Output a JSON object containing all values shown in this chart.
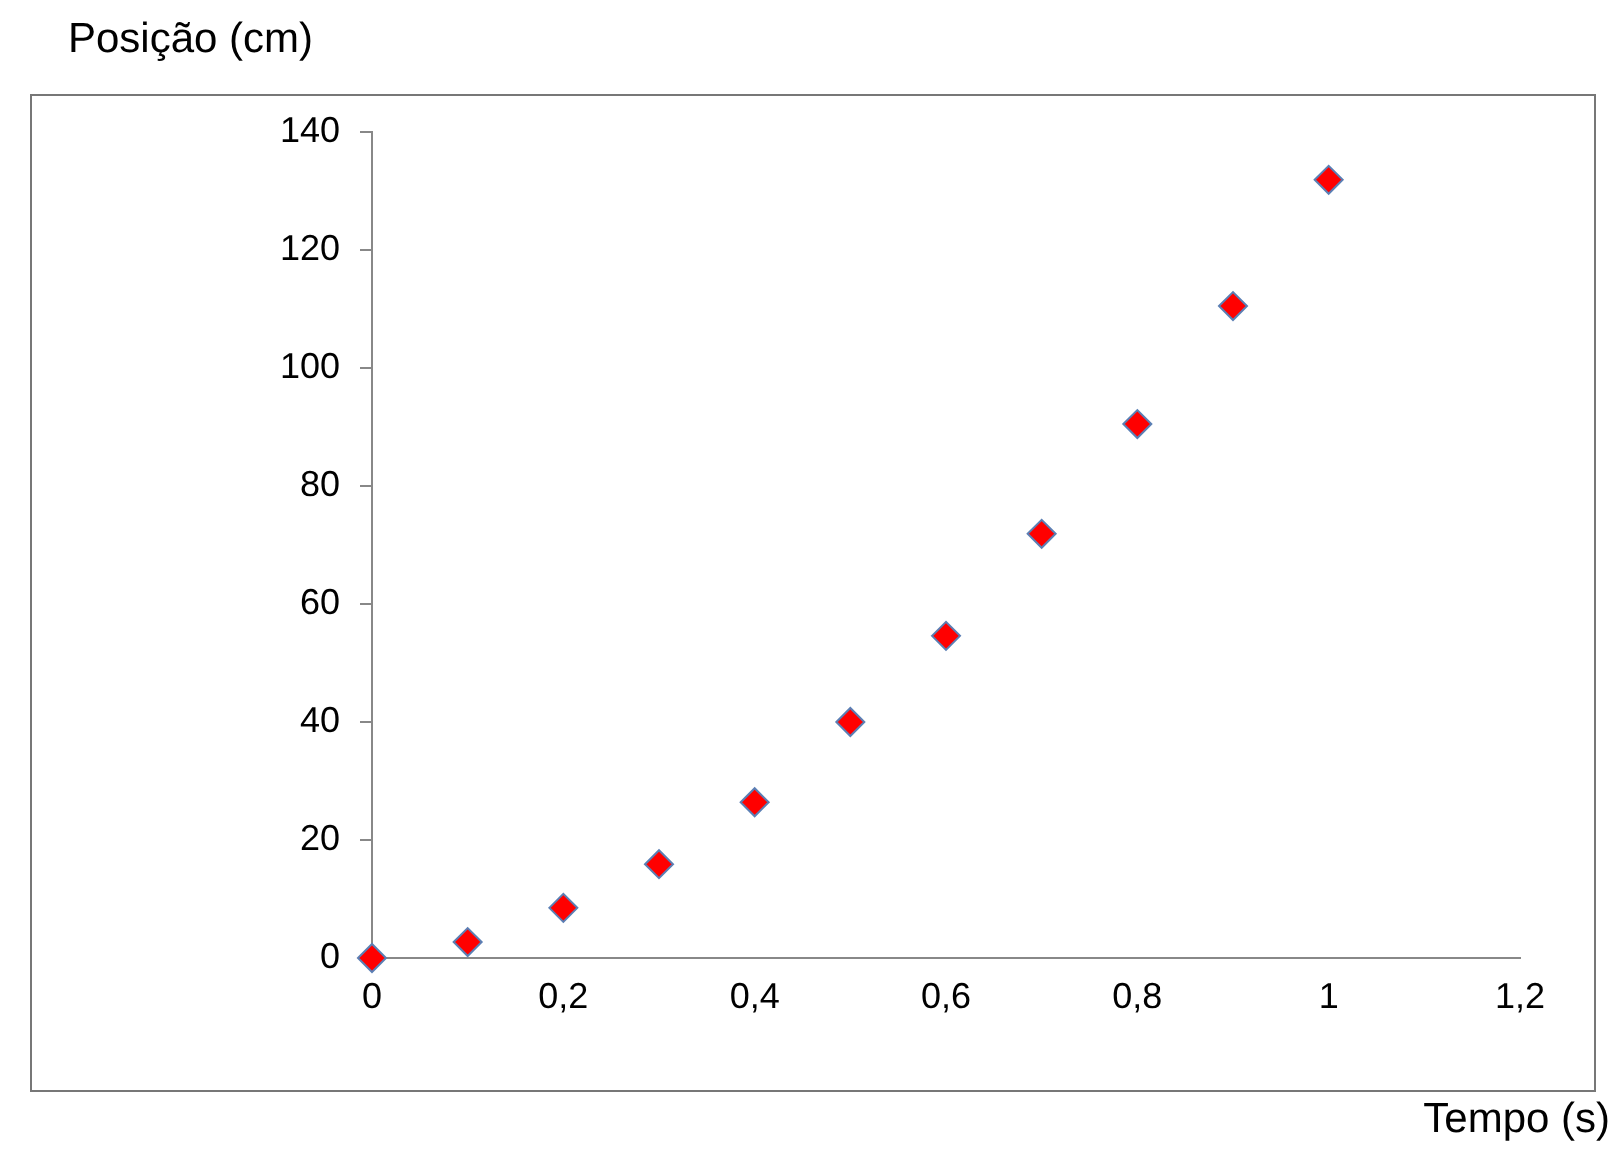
{
  "chart_data": {
    "type": "scatter",
    "xlabel": "Tempo (s)",
    "ylabel": "Posição (cm)",
    "x": [
      0,
      0.1,
      0.2,
      0.3,
      0.4,
      0.5,
      0.6,
      0.7,
      0.8,
      0.9,
      1
    ],
    "values": [
      0,
      2.7,
      8.5,
      15.9,
      26.4,
      40,
      54.6,
      71.9,
      90.5,
      110.5,
      131.9
    ],
    "color": "#ff0000",
    "marker": "diamond",
    "grid": false,
    "legend": false,
    "xlim": [
      0,
      1.2
    ],
    "xticks": [
      0,
      {
        "value": 0.2,
        "label": "0,2"
      },
      {
        "value": 0.4,
        "label": "0,4"
      },
      {
        "value": 0.6,
        "label": "0,6"
      },
      {
        "value": 0.8,
        "label": "0,8"
      },
      1,
      {
        "value": 1.2,
        "label": "1,2"
      }
    ],
    "ylim": [
      0,
      140
    ],
    "yticks": [
      0,
      20,
      40,
      60,
      80,
      100,
      120,
      140
    ]
  }
}
